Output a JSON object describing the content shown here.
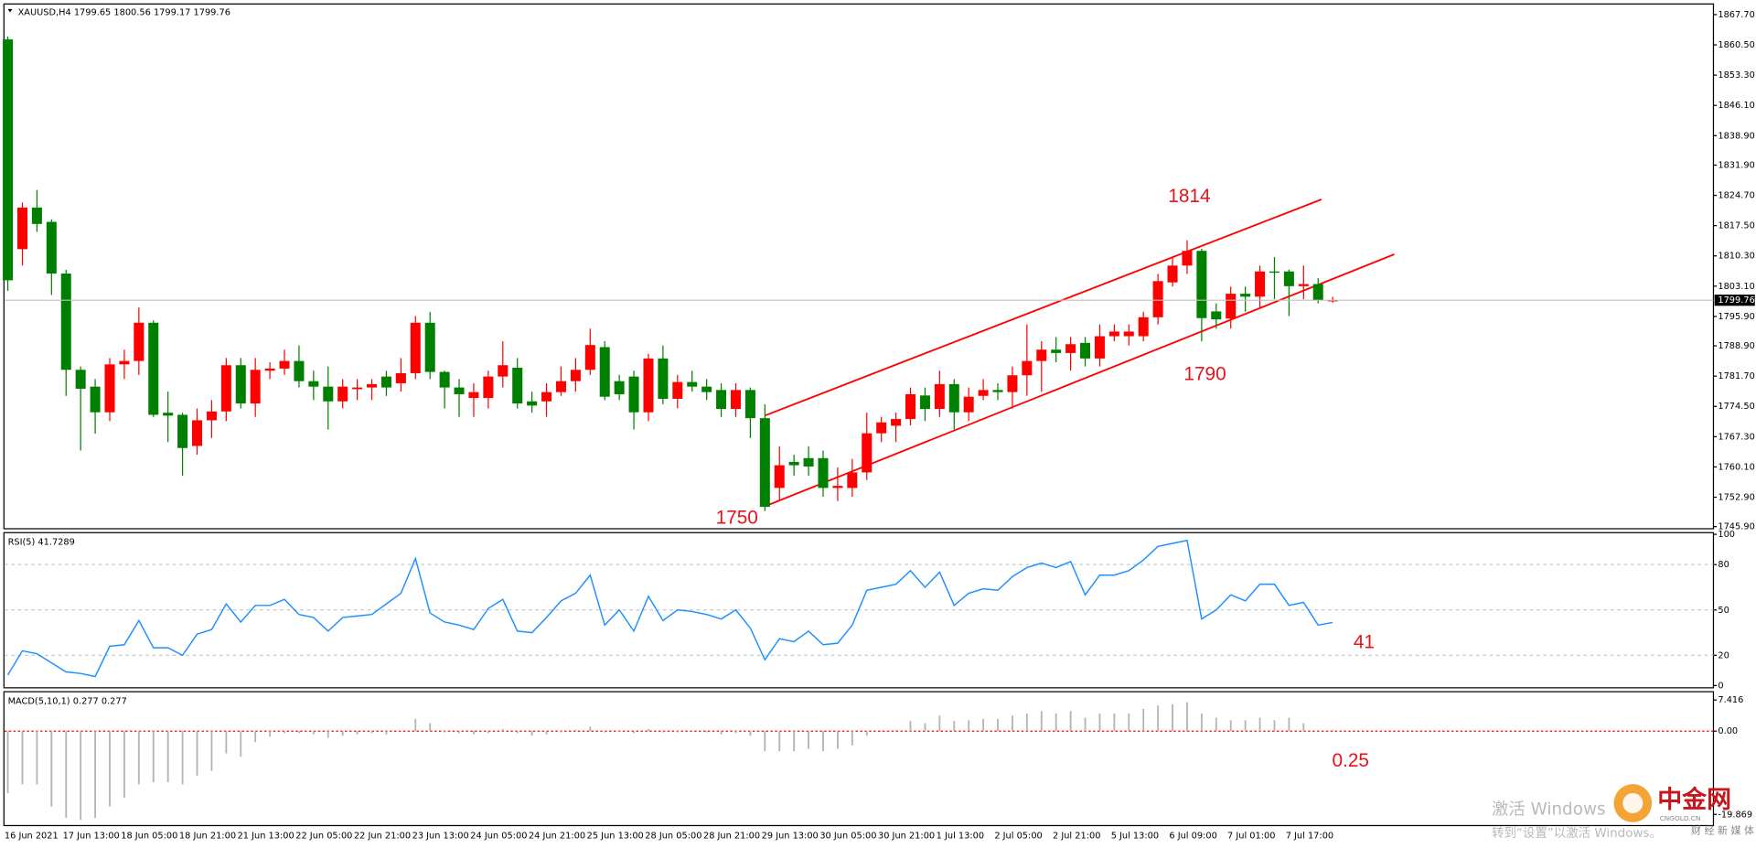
{
  "chart_data": [
    {
      "type": "candlestick",
      "title": "XAUUSD,H4  1799.65 1800.56 1799.17 1799.76",
      "categories": [
        "16 Jun 2021",
        null,
        null,
        null,
        "17 Jun 13:00",
        null,
        null,
        null,
        "18 Jun 05:00",
        null,
        null,
        null,
        "18 Jun 21:00",
        null,
        null,
        null,
        "21 Jun 13:00",
        null,
        null,
        null,
        "22 Jun 05:00",
        null,
        null,
        null,
        "22 Jun 21:00",
        null,
        null,
        null,
        "23 Jun 13:00",
        null,
        null,
        null,
        "24 Jun 05:00",
        null,
        null,
        null,
        "24 Jun 21:00",
        null,
        null,
        null,
        "25 Jun 13:00",
        null,
        null,
        null,
        "28 Jun 05:00",
        null,
        null,
        null,
        "28 Jun 21:00",
        null,
        null,
        null,
        "29 Jun 13:00",
        null,
        null,
        null,
        "30 Jun 05:00",
        null,
        null,
        null,
        "30 Jun 21:00",
        null,
        null,
        null,
        "1 Jul 13:00",
        null,
        null,
        null,
        "2 Jul 05:00",
        null,
        null,
        null,
        "2 Jul 21:00",
        null,
        null,
        null,
        "5 Jul 13:00",
        null,
        null,
        null,
        "6 Jul 09:00",
        null,
        null,
        null,
        "7 Jul 01:00",
        null,
        null,
        null,
        "7 Jul 17:00",
        null,
        null,
        null
      ],
      "open": [
        1861.8,
        1811.9,
        1821.8,
        1818.4,
        1806.1,
        1783.2,
        1779.2,
        1773.1,
        1784.5,
        1785.3,
        1794.4,
        1773.0,
        1772.5,
        1765.1,
        1771.2,
        1773.3,
        1784.3,
        1775.2,
        1783.0,
        1783.5,
        1785.3,
        1780.5,
        1779.2,
        1775.7,
        1778.6,
        1779.0,
        1781.6,
        1780.0,
        1782.4,
        1794.4,
        1782.7,
        1779.0,
        1776.5,
        1776.5,
        1781.6,
        1783.7,
        1775.7,
        1775.7,
        1777.9,
        1780.5,
        1783.2,
        1788.6,
        1780.5,
        1781.6,
        1773.1,
        1785.9,
        1776.3,
        1780.3,
        1779.2,
        1778.4,
        1773.9,
        1778.4,
        1771.7,
        1755.1,
        1761.3,
        1762.2,
        1762.2,
        1755.1,
        1755.1,
        1758.8,
        1768.1,
        1769.9,
        1771.5,
        1777.1,
        1773.9,
        1779.8,
        1773.1,
        1777.0,
        1778.4,
        1777.9,
        1781.9,
        1785.3,
        1788.0,
        1787.2,
        1789.6,
        1785.9,
        1791.2,
        1791.2,
        1791.2,
        1795.7,
        1804.0,
        1808.0,
        1811.5,
        1797.1,
        1795.4,
        1801.3,
        1800.6,
        1806.6,
        1806.6,
        1803.1,
        1803.6,
        1799.65
      ],
      "high": [
        1862.5,
        1823,
        1826,
        1819,
        1807,
        1784,
        1781,
        1786,
        1788,
        1798,
        1795,
        1778,
        1773,
        1774,
        1776,
        1786,
        1786,
        1786,
        1785,
        1788,
        1789,
        1783,
        1784,
        1781,
        1781,
        1781,
        1783,
        1786,
        1796,
        1797,
        1783,
        1781,
        1780,
        1783,
        1790,
        1786,
        1778,
        1780,
        1784,
        1786,
        1793,
        1790,
        1782,
        1783,
        1787,
        1789,
        1782,
        1783,
        1781,
        1780,
        1780,
        1779,
        1775,
        1765,
        1763,
        1765,
        1764,
        1760,
        1762,
        1773,
        1772,
        1773,
        1779,
        1779,
        1783,
        1781,
        1779,
        1781,
        1780,
        1784,
        1794,
        1790,
        1791,
        1791,
        1791,
        1794,
        1794,
        1794,
        1797,
        1806,
        1810,
        1814,
        1812,
        1799,
        1803,
        1803,
        1808,
        1810,
        1807,
        1808,
        1805,
        1800.56
      ],
      "low": [
        1802,
        1808,
        1816,
        1801,
        1777,
        1764,
        1768,
        1771,
        1781,
        1782,
        1772,
        1766,
        1758,
        1763,
        1767,
        1771,
        1774,
        1772,
        1781,
        1782,
        1779,
        1776,
        1769,
        1774,
        1776,
        1776,
        1777,
        1778,
        1781,
        1781,
        1774,
        1772,
        1772,
        1774,
        1779,
        1774,
        1773,
        1772,
        1777,
        1778,
        1782,
        1776,
        1776,
        1769,
        1771,
        1775,
        1774,
        1778,
        1776,
        1772,
        1772,
        1767,
        1749.6,
        1752,
        1758,
        1758,
        1753,
        1752,
        1753,
        1757,
        1766,
        1766,
        1770,
        1771,
        1772,
        1769,
        1771,
        1776,
        1776,
        1774,
        1777,
        1778,
        1785,
        1783,
        1784,
        1784,
        1790,
        1789,
        1790,
        1794,
        1803,
        1806,
        1790,
        1793,
        1793,
        1797,
        1798,
        1800,
        1796,
        1800,
        1799,
        1799.17
      ],
      "close": [
        1804.5,
        1821.8,
        1817.9,
        1806.1,
        1783.2,
        1778.7,
        1773.1,
        1784.5,
        1785.3,
        1794.4,
        1772.5,
        1772.3,
        1764.6,
        1771.2,
        1773.3,
        1784.3,
        1775.2,
        1783.2,
        1783.5,
        1785.3,
        1780.5,
        1779.2,
        1775.7,
        1779.2,
        1779.0,
        1779.8,
        1779.0,
        1782.4,
        1794.4,
        1782.7,
        1779.0,
        1777.4,
        1777.9,
        1781.6,
        1784.3,
        1775.2,
        1774.7,
        1777.9,
        1780.5,
        1783.2,
        1789.1,
        1776.8,
        1777.4,
        1773.1,
        1785.9,
        1776.3,
        1780.3,
        1779.2,
        1777.9,
        1773.9,
        1778.4,
        1771.7,
        1750.6,
        1760.5,
        1760.5,
        1760.2,
        1755.1,
        1755.6,
        1758.8,
        1768.1,
        1770.7,
        1771.5,
        1777.4,
        1773.9,
        1779.8,
        1773.1,
        1776.8,
        1778.4,
        1777.9,
        1781.9,
        1785.3,
        1788.0,
        1787.2,
        1789.3,
        1785.9,
        1791.2,
        1792.3,
        1792.3,
        1795.7,
        1804.3,
        1808.0,
        1811.5,
        1795.5,
        1795.2,
        1801.3,
        1800.6,
        1806.6,
        1806.3,
        1803.1,
        1803.6,
        1799.7,
        1799.76
      ],
      "up_color": "#ff0000",
      "down_color": "#008000",
      "bid_line": 1799.76,
      "ylim": [
        1745.4,
        1870.1
      ],
      "yticks": [
        {
          "value": 1867.7,
          "label": "1867.70"
        },
        {
          "value": 1860.5,
          "label": "1860.50"
        },
        {
          "value": 1853.3,
          "label": "1853.30"
        },
        {
          "value": 1846.1,
          "label": "1846.10"
        },
        {
          "value": 1838.9,
          "label": "1838.90"
        },
        {
          "value": 1831.9,
          "label": "1831.90"
        },
        {
          "value": 1824.7,
          "label": "1824.70"
        },
        {
          "value": 1817.5,
          "label": "1817.50"
        },
        {
          "value": 1810.3,
          "label": "1810.30"
        },
        {
          "value": 1803.1,
          "label": "1803.10"
        },
        {
          "value": 1795.9,
          "label": "1795.90"
        },
        {
          "value": 1788.9,
          "label": "1788.90"
        },
        {
          "value": 1781.7,
          "label": "1781.70"
        },
        {
          "value": 1774.5,
          "label": "1774.50"
        },
        {
          "value": 1767.3,
          "label": "1767.30"
        },
        {
          "value": 1760.1,
          "label": "1760.10"
        },
        {
          "value": 1752.9,
          "label": "1752.90"
        },
        {
          "value": 1745.9,
          "label": "1745.90"
        }
      ],
      "grid": false,
      "annotations": [
        "1814",
        "1790",
        "1750"
      ]
    },
    {
      "type": "line",
      "title": "RSI(5) 41.7289",
      "color": "#1e90ff",
      "values": [
        7,
        23,
        21,
        15,
        9,
        8,
        6,
        26,
        27,
        43,
        25,
        25,
        20,
        34,
        37,
        54,
        42,
        53,
        53,
        57,
        47,
        45,
        36,
        45,
        46,
        47,
        54,
        61,
        84,
        48,
        42,
        40,
        37,
        51,
        57,
        36,
        35,
        45,
        56,
        61,
        73,
        40,
        50,
        36,
        59,
        43,
        50,
        49,
        47,
        44,
        50,
        38,
        17,
        31,
        29,
        36,
        27,
        28,
        40,
        63,
        65,
        67,
        76,
        65,
        75,
        53,
        61,
        64,
        63,
        72,
        78,
        81,
        78,
        82,
        60,
        73,
        73,
        76,
        83,
        92,
        94,
        96,
        44,
        50,
        60,
        56,
        67,
        67,
        53,
        55,
        40,
        41.7289
      ],
      "ylim": [
        0,
        100
      ],
      "yticks": [
        100,
        80,
        50,
        20,
        0
      ],
      "grid": true,
      "annotations": [
        "41"
      ]
    },
    {
      "type": "bar",
      "title": "MACD(5,10,1) 0.277 0.277",
      "color": "#b4b4b4",
      "values": [
        -14.8,
        -12.7,
        -12.7,
        -18,
        -20.7,
        -21.2,
        -20.7,
        -18,
        -15.9,
        -12.7,
        -12.2,
        -12.2,
        -12.7,
        -10.6,
        -9.5,
        -5.3,
        -6.1,
        -2.6,
        -1.3,
        -0.5,
        -0.5,
        -0.8,
        -1.6,
        -1.1,
        -0.8,
        -0.5,
        -0.8,
        0.1,
        2.9,
        1.9,
        -0.3,
        -0.5,
        -0.8,
        -0.5,
        0.5,
        -0.5,
        -1.1,
        -0.8,
        -0.3,
        0.3,
        1.1,
        -0.3,
        0,
        -0.5,
        0.5,
        -0.3,
        -0.3,
        0,
        -0.3,
        -0.8,
        -0.5,
        -1.1,
        -4.8,
        -4.8,
        -4.8,
        -4.2,
        -4.8,
        -4.2,
        -3.4,
        -1.1,
        0.1,
        0.3,
        2.4,
        1.9,
        3.7,
        2.4,
        2.6,
        2.9,
        2.9,
        3.7,
        4.2,
        4.8,
        4.2,
        4.8,
        3.2,
        4.2,
        4.2,
        4.2,
        5.3,
        6.1,
        6.4,
        6.9,
        4.2,
        3.2,
        2.6,
        2.6,
        3.2,
        2.6,
        3.2,
        1.9,
        0.3,
        0.277
      ],
      "ylim": [
        -22,
        9
      ],
      "yticks": [
        7.416,
        {
          "value": 0,
          "label": "0.00"
        },
        -19.869
      ],
      "zero_line": true,
      "zero_line_color": "#ff0000",
      "grid": false,
      "annotations": [
        "0.25"
      ]
    }
  ],
  "watermark": {
    "line1": "激活 Windows",
    "line2": "转到“设置”以激活 Windows。",
    "logo": "中金网",
    "logo_sub": "CNGOLD.CN",
    "logo_tag": "财 经 新 媒 体"
  }
}
